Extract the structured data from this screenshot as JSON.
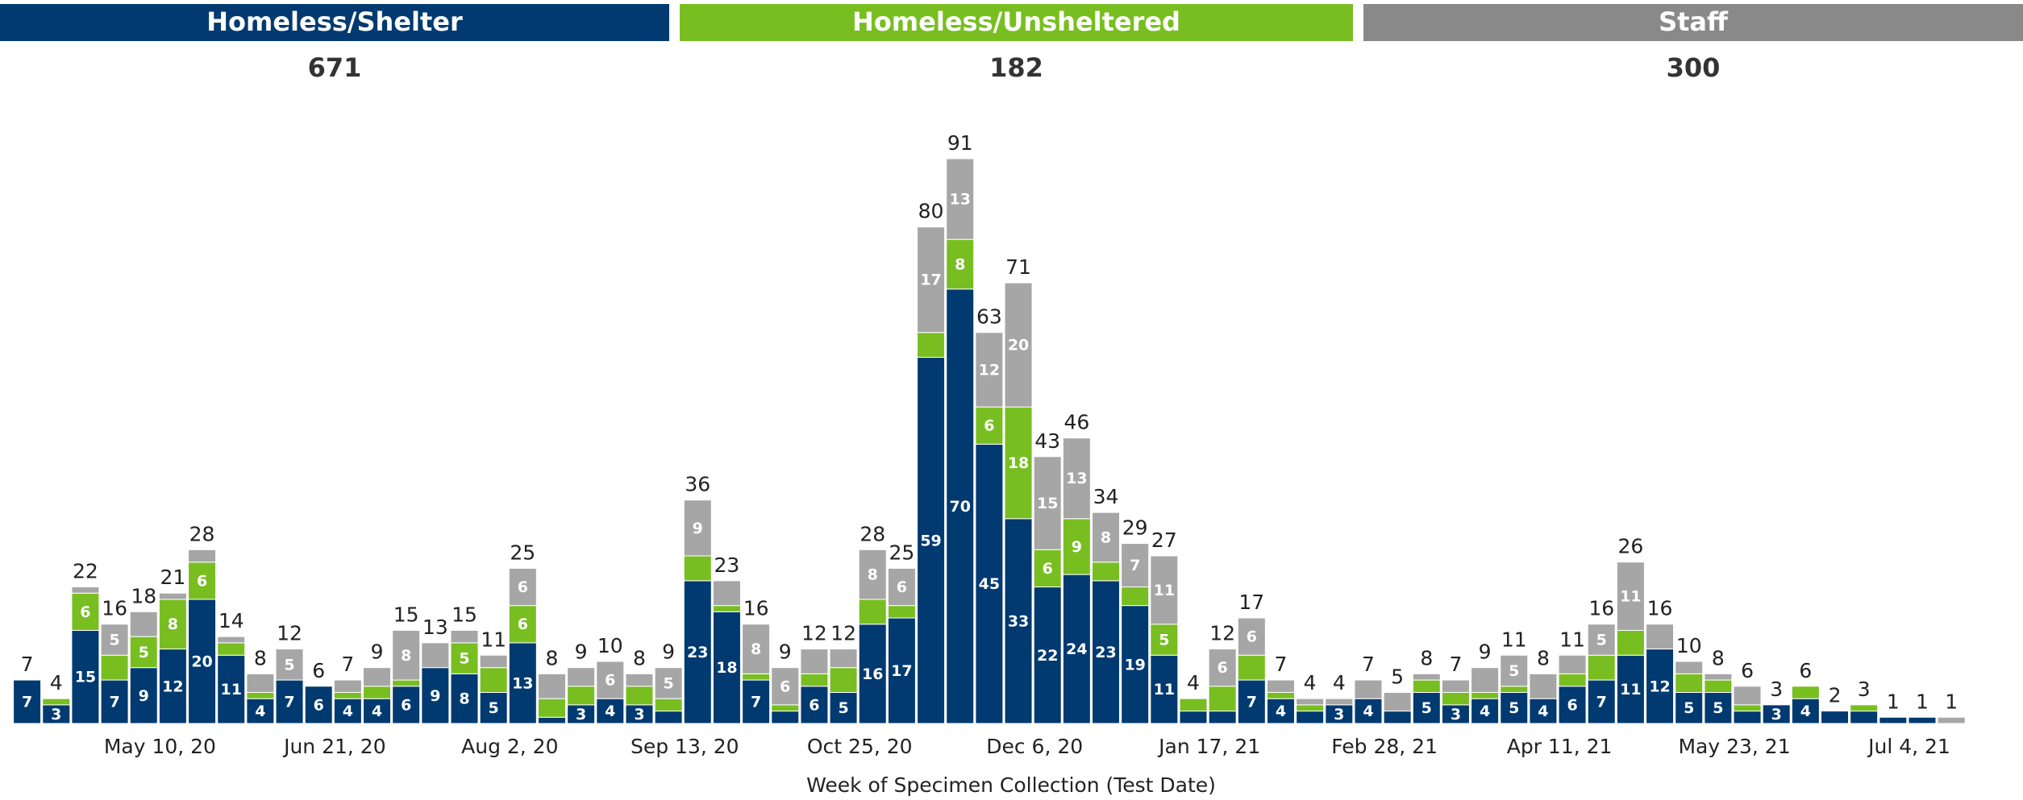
{
  "chart_data": {
    "type": "stacked_bar",
    "x_label": "Week of Specimen Collection (Test Date)",
    "categories": [
      null,
      null,
      null,
      null,
      null,
      "May 10, 20",
      null,
      null,
      null,
      null,
      null,
      "Jun 21, 20",
      null,
      null,
      null,
      null,
      null,
      "Aug 2, 20",
      null,
      null,
      null,
      null,
      null,
      "Sep 13, 20",
      null,
      null,
      null,
      null,
      null,
      "Oct 25, 20",
      null,
      null,
      null,
      null,
      null,
      "Dec 6, 20",
      null,
      null,
      null,
      null,
      null,
      "Jan 17, 21",
      null,
      null,
      null,
      null,
      null,
      "Feb 28, 21",
      null,
      null,
      null,
      null,
      null,
      "Apr 11, 21",
      null,
      null,
      null,
      null,
      null,
      "May 23, 21",
      null,
      null,
      null,
      null,
      null,
      "Jul 4, 21",
      null
    ],
    "series": [
      {
        "name": "Homeless/Shelter",
        "total": 671,
        "color": "#003a70",
        "header_color": "#003a70",
        "values": [
          7,
          3,
          15,
          7,
          9,
          12,
          20,
          11,
          4,
          7,
          6,
          4,
          4,
          6,
          9,
          8,
          5,
          13,
          1,
          3,
          4,
          3,
          2,
          23,
          18,
          7,
          2,
          6,
          5,
          16,
          17,
          59,
          70,
          45,
          33,
          22,
          24,
          23,
          19,
          11,
          2,
          2,
          7,
          4,
          2,
          3,
          4,
          2,
          5,
          3,
          4,
          5,
          4,
          6,
          7,
          11,
          12,
          5,
          5,
          2,
          3,
          4,
          2,
          2,
          1,
          1,
          0
        ]
      },
      {
        "name": "Homeless/Unsheltered",
        "total": 182,
        "color": "#78be21",
        "header_color": "#78be21",
        "values": [
          0,
          1,
          6,
          4,
          5,
          8,
          6,
          2,
          1,
          0,
          0,
          1,
          2,
          1,
          0,
          5,
          4,
          6,
          3,
          3,
          0,
          3,
          2,
          4,
          1,
          1,
          1,
          2,
          4,
          4,
          2,
          4,
          8,
          6,
          18,
          6,
          9,
          3,
          3,
          5,
          2,
          4,
          4,
          1,
          1,
          0,
          0,
          0,
          2,
          2,
          1,
          1,
          0,
          2,
          4,
          4,
          0,
          3,
          2,
          1,
          0,
          2,
          0,
          1,
          0,
          0,
          0
        ]
      },
      {
        "name": "Staff",
        "total": 300,
        "color": "#a6a6a6",
        "header_color": "#898989",
        "values": [
          0,
          0,
          1,
          5,
          4,
          1,
          2,
          1,
          3,
          5,
          0,
          2,
          3,
          8,
          4,
          2,
          2,
          6,
          4,
          3,
          6,
          2,
          5,
          9,
          4,
          8,
          6,
          4,
          3,
          8,
          6,
          17,
          13,
          12,
          20,
          15,
          13,
          8,
          7,
          11,
          0,
          6,
          6,
          2,
          1,
          1,
          3,
          3,
          1,
          2,
          4,
          5,
          4,
          3,
          5,
          11,
          4,
          2,
          1,
          3,
          0,
          0,
          0,
          0,
          0,
          0,
          1
        ]
      }
    ],
    "totals": [
      7,
      4,
      22,
      16,
      18,
      21,
      28,
      14,
      8,
      12,
      6,
      7,
      9,
      15,
      13,
      15,
      11,
      25,
      8,
      9,
      10,
      8,
      9,
      36,
      23,
      16,
      9,
      12,
      12,
      28,
      25,
      80,
      91,
      63,
      71,
      43,
      46,
      34,
      29,
      27,
      4,
      12,
      17,
      7,
      4,
      4,
      7,
      5,
      8,
      7,
      9,
      11,
      8,
      11,
      16,
      26,
      16,
      10,
      8,
      6,
      3,
      6,
      2,
      3,
      1,
      1,
      1
    ]
  }
}
